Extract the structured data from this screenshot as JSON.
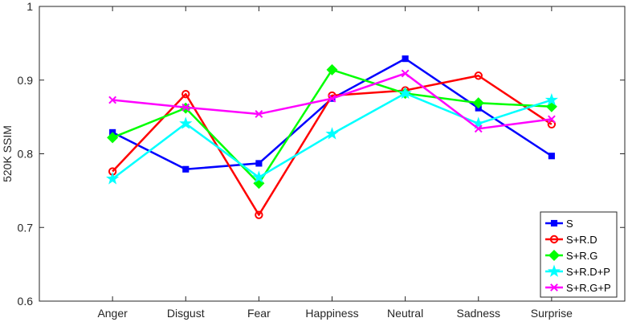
{
  "chart_data": {
    "type": "line",
    "categories": [
      "Anger",
      "Disgust",
      "Fear",
      "Happiness",
      "Neutral",
      "Sadness",
      "Surprise"
    ],
    "ylabel": "520K SSIM",
    "xlabel": "",
    "ylim": [
      0.6,
      1.0
    ],
    "yticks": [
      0.6,
      0.7,
      0.8,
      0.9,
      1.0
    ],
    "ytick_labels": [
      "0.6",
      "0.7",
      "0.8",
      "0.9",
      "1"
    ],
    "grid": false,
    "legend_position": "bottom-right",
    "series": [
      {
        "name": "S",
        "color": "#0000ff",
        "marker": "square",
        "values": [
          0.829,
          0.779,
          0.787,
          0.875,
          0.929,
          0.862,
          0.797
        ]
      },
      {
        "name": "S+R.D",
        "color": "#ff0000",
        "marker": "circle",
        "values": [
          0.776,
          0.881,
          0.717,
          0.879,
          0.886,
          0.906,
          0.84
        ]
      },
      {
        "name": "S+R.G",
        "color": "#00ff00",
        "marker": "diamond",
        "values": [
          0.822,
          0.862,
          0.76,
          0.914,
          0.882,
          0.869,
          0.864
        ]
      },
      {
        "name": "S+R.D+P",
        "color": "#00ffff",
        "marker": "star",
        "values": [
          0.766,
          0.841,
          0.768,
          0.827,
          0.882,
          0.841,
          0.873
        ]
      },
      {
        "name": "S+R.G+P",
        "color": "#ff00ff",
        "marker": "x",
        "values": [
          0.873,
          0.863,
          0.854,
          0.875,
          0.909,
          0.834,
          0.847
        ]
      }
    ]
  }
}
